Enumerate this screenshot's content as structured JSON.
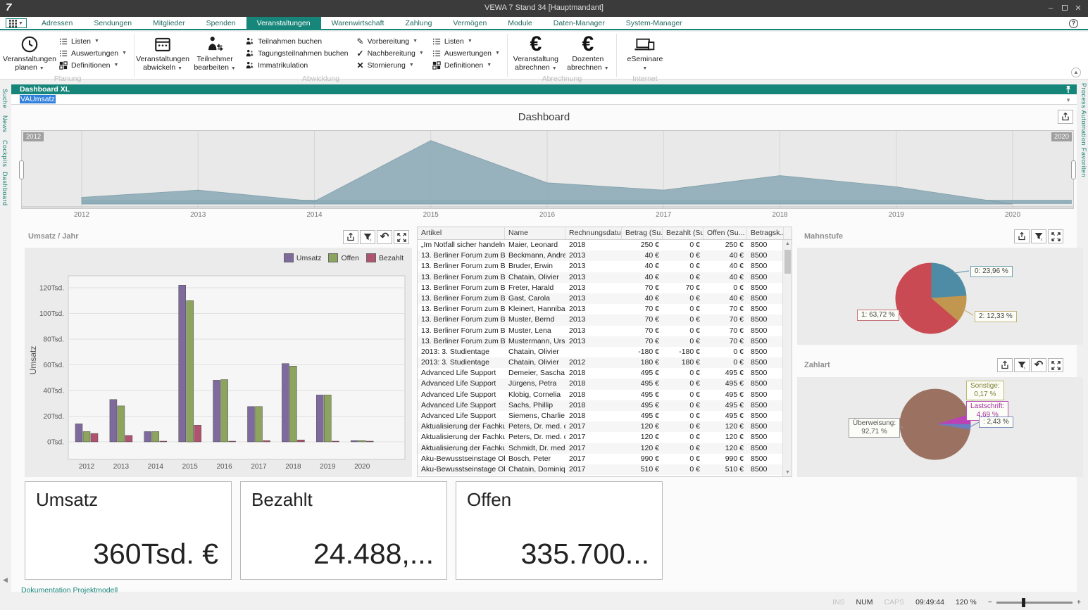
{
  "window": {
    "title": "VEWA 7 Stand 34 [Hauptmandant]",
    "logo": "7"
  },
  "menu": {
    "tabs": [
      "Adressen",
      "Sendungen",
      "Mitglieder",
      "Spenden",
      "Veranstaltungen",
      "Warenwirtschaft",
      "Zahlung",
      "Vermögen",
      "Module",
      "Daten-Manager",
      "System-Manager"
    ],
    "active_index": 4
  },
  "ribbon": {
    "groups": [
      {
        "name": "Planung",
        "big": [
          {
            "lines": [
              "Veranstaltungen",
              "planen"
            ],
            "icon": "clock-icon",
            "dropdown": true
          }
        ],
        "small_cols": [
          [
            {
              "label": "Listen",
              "icon": "list-icon",
              "dropdown": true
            },
            {
              "label": "Auswertungen",
              "icon": "list-icon",
              "dropdown": true
            },
            {
              "label": "Definitionen",
              "icon": "tiles-icon",
              "dropdown": true
            }
          ]
        ]
      },
      {
        "name": "Abwicklung",
        "big": [
          {
            "lines": [
              "Veranstaltungen",
              "abwickeln"
            ],
            "icon": "calendar-icon",
            "dropdown": true
          },
          {
            "lines": [
              "Teilnehmer",
              "bearbeiten"
            ],
            "icon": "person-swap-icon",
            "dropdown": true
          }
        ],
        "small_cols": [
          [
            {
              "label": "Teilnahmen buchen",
              "icon": "person-add-icon"
            },
            {
              "label": "Tagungsteilnahmen buchen",
              "icon": "person-add-icon"
            },
            {
              "label": "Immatrikulation",
              "icon": "person-add-icon"
            }
          ],
          [
            {
              "label": "Vorbereitung",
              "icon": "pencil-icon",
              "dropdown": true
            },
            {
              "label": "Nachbereitung",
              "icon": "check-icon",
              "dropdown": true
            },
            {
              "label": "Stornierung",
              "icon": "cross-icon",
              "dropdown": true
            }
          ],
          [
            {
              "label": "Listen",
              "icon": "list-icon",
              "dropdown": true
            },
            {
              "label": "Auswertungen",
              "icon": "list-icon",
              "dropdown": true
            },
            {
              "label": "Definitionen",
              "icon": "tiles-icon",
              "dropdown": true
            }
          ]
        ]
      },
      {
        "name": "Abrechnung",
        "big": [
          {
            "lines": [
              "Veranstaltung",
              "abrechnen"
            ],
            "icon": "euro-icon",
            "dropdown": true
          },
          {
            "lines": [
              "Dozenten",
              "abrechnen"
            ],
            "icon": "euro-icon",
            "dropdown": true
          }
        ],
        "small_cols": []
      },
      {
        "name": "Internet",
        "big": [
          {
            "lines": [
              "eSeminare",
              ""
            ],
            "icon": "laptop-icon",
            "dropdown": true
          }
        ],
        "small_cols": []
      }
    ]
  },
  "rails": {
    "left": [
      "Suche",
      "News",
      "Cockpits",
      "Dashboard"
    ],
    "right": [
      "Process Automation",
      "Favoriten"
    ]
  },
  "dashboard": {
    "panel_title": "Dashboard XL",
    "formula_value": "VAUmsatz",
    "page_title": "Dashboard",
    "doc_link": "Dokumentation Projektmodell"
  },
  "chart_data": [
    {
      "id": "timeline",
      "type": "area",
      "x": [
        2012,
        2013,
        2014,
        2015,
        2016,
        2017,
        2018,
        2019,
        2020
      ],
      "values_pct": [
        10,
        21,
        4,
        96,
        32,
        21,
        43,
        26,
        0
      ],
      "color": "#8fadb8",
      "line_color": "#7d9da9",
      "range_badges": [
        "2012",
        "2020"
      ],
      "grid": true
    },
    {
      "id": "umsatz_jahr",
      "type": "bar",
      "title": "Umsatz / Jahr",
      "ylabel": "Umsatz",
      "categories": [
        "2012",
        "2013",
        "2014",
        "2015",
        "2016",
        "2017",
        "2018",
        "2019",
        "2020"
      ],
      "series": [
        {
          "name": "Umsatz",
          "color": "#7e6a9d",
          "values": [
            14,
            33,
            8,
            122,
            48,
            27.5,
            61,
            36.5,
            1
          ]
        },
        {
          "name": "Offen",
          "color": "#8da45e",
          "values": [
            8,
            28,
            8,
            110,
            48.5,
            27.5,
            59,
            36.5,
            1
          ]
        },
        {
          "name": "Bezahlt",
          "color": "#b0536e",
          "values": [
            6.5,
            5,
            0.5,
            13,
            0.5,
            1,
            1.5,
            0.5,
            0.5
          ]
        }
      ],
      "yticks": [
        "0Tsd.",
        "20Tsd.",
        "40Tsd.",
        "60Tsd.",
        "80Tsd.",
        "100Tsd.",
        "120Tsd."
      ],
      "ytick_step": 20,
      "ylim": [
        0,
        130
      ],
      "legend_position": "top-right",
      "grid": true
    },
    {
      "id": "mahnstufe",
      "type": "pie",
      "title": "Mahnstufe",
      "start_angle": 0,
      "slices": [
        {
          "label": "0: 23,96 %",
          "value": 23.96,
          "color": "#4e8ca6",
          "border": "#6f9fb0"
        },
        {
          "label": "2: 12,33 %",
          "value": 12.33,
          "color": "#c1964f",
          "border": "#c4b27c"
        },
        {
          "label": "1: 63,72 %",
          "value": 63.72,
          "color": "#c94a52",
          "border": "#c4737c"
        }
      ]
    },
    {
      "id": "zahlart",
      "type": "pie",
      "title": "Zahlart",
      "start_angle": 73,
      "slices": [
        {
          "label": "Sonstige: 0,17 %",
          "lines": [
            "Sonstige:",
            "0,17 %"
          ],
          "value": 0.17,
          "color": "#b9bc6e",
          "border": "#b9bc6e",
          "text": "#7d8030"
        },
        {
          "label": "Lastschrift: 4,69 %",
          "lines": [
            "Lastschrift:",
            "4,69 %"
          ],
          "value": 4.69,
          "color": "#bb42b4",
          "border": "#bb4fb4",
          "text": "#a12d9d"
        },
        {
          "label": ": 2,43 %",
          "lines": [
            ": 2,43 %"
          ],
          "value": 2.43,
          "color": "#6b7fc0",
          "border": "#7d8cbf",
          "text": "#444444"
        },
        {
          "label": "Überweisung: 92,71 %",
          "lines": [
            "Überweisung:",
            "92,71 %"
          ],
          "value": 92.71,
          "color": "#9b7261",
          "border": "#9a9a9a",
          "text": "#555555"
        }
      ]
    }
  ],
  "table": {
    "columns": [
      "Artikel",
      "Name",
      "Rechnungsdatu...",
      "Betrag (Su...",
      "Bezahlt (Su...",
      "Offen (Su...",
      "Betragsk..."
    ],
    "rows": [
      [
        "„Im Notfall sicher handeln“",
        "Maier, Leonard",
        "2018",
        "250 €",
        "0 €",
        "250 €",
        "8500"
      ],
      [
        "13. Berliner Forum zum Betr...",
        "Beckmann, Andrea",
        "2013",
        "40 €",
        "0 €",
        "40 €",
        "8500"
      ],
      [
        "13. Berliner Forum zum Betr...",
        "Bruder, Erwin",
        "2013",
        "40 €",
        "0 €",
        "40 €",
        "8500"
      ],
      [
        "13. Berliner Forum zum Betr...",
        "Chatain, Olivier",
        "2013",
        "40 €",
        "0 €",
        "40 €",
        "8500"
      ],
      [
        "13. Berliner Forum zum Betr...",
        "Freter, Harald",
        "2013",
        "70 €",
        "70 €",
        "0 €",
        "8500"
      ],
      [
        "13. Berliner Forum zum Betr...",
        "Gast, Carola",
        "2013",
        "40 €",
        "0 €",
        "40 €",
        "8500"
      ],
      [
        "13. Berliner Forum zum Betr...",
        "Kleinert, Hannibal",
        "2013",
        "70 €",
        "0 €",
        "70 €",
        "8500"
      ],
      [
        "13. Berliner Forum zum Betr...",
        "Muster, Bernd",
        "2013",
        "70 €",
        "0 €",
        "70 €",
        "8500"
      ],
      [
        "13. Berliner Forum zum Betr...",
        "Muster, Lena",
        "2013",
        "70 €",
        "0 €",
        "70 €",
        "8500"
      ],
      [
        "13. Berliner Forum zum Betr...",
        "Mustermann, Ursula",
        "2013",
        "70 €",
        "0 €",
        "70 €",
        "8500"
      ],
      [
        "2013: 3. Studientage",
        "Chatain, Olivier",
        "",
        "-180 €",
        "-180 €",
        "0 €",
        "8500"
      ],
      [
        "2013: 3. Studientage",
        "Chatain, Olivier",
        "2012",
        "180 €",
        "180 €",
        "0 €",
        "8500"
      ],
      [
        "Advanced Life Support",
        "Demeier, Sascha",
        "2018",
        "495 €",
        "0 €",
        "495 €",
        "8500"
      ],
      [
        "Advanced Life Support",
        "Jürgens, Petra",
        "2018",
        "495 €",
        "0 €",
        "495 €",
        "8500"
      ],
      [
        "Advanced Life Support",
        "Klobig, Cornelia",
        "2018",
        "495 €",
        "0 €",
        "495 €",
        "8500"
      ],
      [
        "Advanced Life Support",
        "Sachs, Phillip",
        "2018",
        "495 €",
        "0 €",
        "495 €",
        "8500"
      ],
      [
        "Advanced Life Support",
        "Siemens, Charlie",
        "2018",
        "495 €",
        "0 €",
        "495 €",
        "8500"
      ],
      [
        "Aktualisierung der Fachkund...",
        "Peters, Dr. med. d...",
        "2017",
        "120 €",
        "0 €",
        "120 €",
        "8500"
      ],
      [
        "Aktualisierung der Fachkund...",
        "Peters, Dr. med. d...",
        "2017",
        "120 €",
        "0 €",
        "120 €",
        "8500"
      ],
      [
        "Aktualisierung der Fachkund...",
        "Schmidt, Dr. med. ...",
        "2017",
        "120 €",
        "0 €",
        "120 €",
        "8500"
      ],
      [
        "Aku-Bewusstseinstage Oland",
        "Bosch, Peter",
        "2017",
        "990 €",
        "0 €",
        "990 €",
        "8500"
      ],
      [
        "Aku-Bewusstseinstage Oland",
        "Chatain, Dominique",
        "2017",
        "510 €",
        "0 €",
        "510 €",
        "8500"
      ]
    ]
  },
  "kpis": [
    {
      "label": "Umsatz",
      "value": "360Tsd. €"
    },
    {
      "label": "Bezahlt",
      "value": "24.488,..."
    },
    {
      "label": "Offen",
      "value": "335.700..."
    }
  ],
  "status_bar": {
    "ins": "INS",
    "num": "NUM",
    "caps": "CAPS",
    "time": "09:49:44",
    "zoom": "120 %"
  },
  "colors": {
    "accent": "#17867a",
    "selection": "#2f80dd",
    "titlebar": "#3b3b3b"
  }
}
